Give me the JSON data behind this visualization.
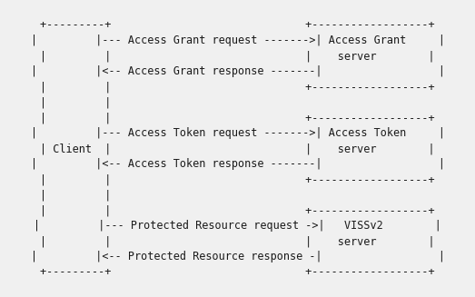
{
  "bg_color": "#f0f0f0",
  "text_color": "#1a1a1a",
  "font_family": "monospace",
  "font_size": 8.5,
  "lines": [
    "+---------+                              +------------------+",
    "|         |--- Access Grant request ------->| Access Grant     |",
    "|         |                              |    server        |",
    "|         |<-- Access Grant response -------|                  |",
    "|         |                              +------------------+",
    "|         |                                                  ",
    "|         |                              +------------------+",
    "|         |--- Access Token request ------->| Access Token     |",
    "| Client  |                              |    server        |",
    "|         |<-- Access Token response -------|                  |",
    "|         |                              +------------------+",
    "|         |                                                  ",
    "|         |                              +------------------+",
    "|         |--- Protected Resource request ->|   VISSv2        |",
    "|         |                              |    server        |",
    "|         |<-- Protected Resource response -|                  |",
    "+---------+                              +------------------+"
  ]
}
